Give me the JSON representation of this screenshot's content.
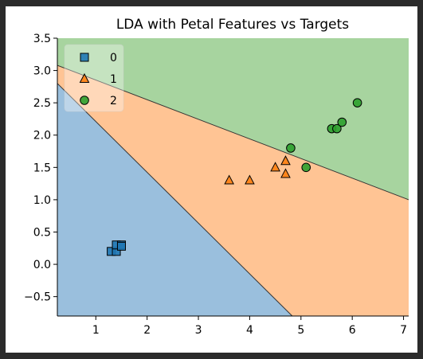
{
  "chart_data": {
    "type": "scatter",
    "title": "LDA with Petal Features vs Targets",
    "xlabel": "",
    "ylabel": "",
    "xlim": [
      0.25,
      7.1
    ],
    "ylim": [
      -0.8,
      3.5
    ],
    "x_ticks": [
      1,
      2,
      3,
      4,
      5,
      6,
      7
    ],
    "y_ticks": [
      -0.5,
      0.0,
      0.5,
      1.0,
      1.5,
      2.0,
      2.5,
      3.0,
      3.5
    ],
    "x_tick_labels": [
      "1",
      "2",
      "3",
      "4",
      "5",
      "6",
      "7"
    ],
    "y_tick_labels": [
      "−0.5",
      "0.0",
      "0.5",
      "1.0",
      "1.5",
      "2.0",
      "2.5",
      "3.0",
      "3.5"
    ],
    "grid": false,
    "legend_position": "top-left",
    "decision_regions": [
      {
        "label": "0",
        "color": "#9abfdd"
      },
      {
        "label": "1",
        "color": "#ffc494"
      },
      {
        "label": "2",
        "color": "#a7d49f"
      }
    ],
    "boundaries": [
      {
        "name": "0|1",
        "x1": 0.25,
        "y1": 2.8,
        "x2": 4.83,
        "y2": -0.8
      },
      {
        "name": "1|2",
        "x1": 0.25,
        "y1": 3.08,
        "x2": 7.1,
        "y2": 1.0
      }
    ],
    "series": [
      {
        "name": "0",
        "marker": "square",
        "color": "#1f77b4",
        "points": [
          [
            1.3,
            0.2
          ],
          [
            1.4,
            0.2
          ],
          [
            1.4,
            0.3
          ],
          [
            1.5,
            0.3
          ],
          [
            1.5,
            0.28
          ]
        ]
      },
      {
        "name": "1",
        "marker": "triangle",
        "color": "#ff7f0e",
        "points": [
          [
            3.6,
            1.3
          ],
          [
            4.0,
            1.3
          ],
          [
            4.5,
            1.5
          ],
          [
            4.7,
            1.6
          ],
          [
            4.7,
            1.4
          ]
        ]
      },
      {
        "name": "2",
        "marker": "circle",
        "color": "#2ca02c",
        "points": [
          [
            4.8,
            1.8
          ],
          [
            5.1,
            1.5
          ],
          [
            5.6,
            2.1
          ],
          [
            5.7,
            2.1
          ],
          [
            5.8,
            2.2
          ],
          [
            6.1,
            2.5
          ]
        ]
      }
    ]
  }
}
